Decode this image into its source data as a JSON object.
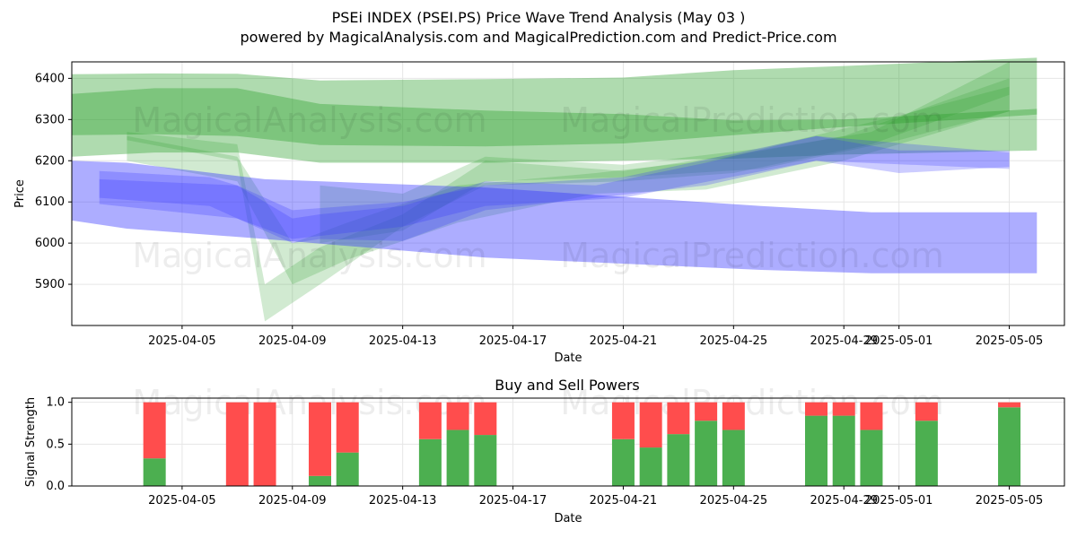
{
  "title": "PSEi INDEX (PSEI.PS) Price Wave Trend Analysis (May 03 )",
  "subtitle": "powered by MagicalAnalysis.com and MagicalPrediction.com and Predict-Price.com",
  "watermarks": [
    "MagicalAnalysis.com",
    "MagicalPrediction.com"
  ],
  "colors": {
    "green_band": "#2ca02c",
    "blue_band": "#3333ff",
    "buy": "#4caf50",
    "sell": "#ff4d4d"
  },
  "chart_data": [
    {
      "type": "area",
      "title": "",
      "xlabel": "Date",
      "ylabel": "Price",
      "xlim": [
        "2025-04-01",
        "2025-05-07"
      ],
      "ylim": [
        5800,
        6440
      ],
      "x_ticks": [
        "2025-04-05",
        "2025-04-09",
        "2025-04-13",
        "2025-04-17",
        "2025-04-21",
        "2025-04-25",
        "2025-04-29",
        "2025-05-01",
        "2025-05-05"
      ],
      "y_ticks": [
        5900,
        6000,
        6100,
        6200,
        6300,
        6400
      ],
      "grid": true,
      "series": [
        {
          "color": "green",
          "x": [
            "2025-04-01",
            "2025-04-04",
            "2025-04-07",
            "2025-04-10",
            "2025-04-16",
            "2025-04-21",
            "2025-04-25",
            "2025-04-29",
            "2025-05-06"
          ],
          "lower": [
            6210,
            6220,
            6220,
            6195,
            6195,
            6200,
            6205,
            6215,
            6225
          ],
          "upper": [
            6410,
            6412,
            6411,
            6395,
            6398,
            6402,
            6420,
            6430,
            6450
          ]
        },
        {
          "color": "green",
          "x": [
            "2025-04-01",
            "2025-04-04",
            "2025-04-07",
            "2025-04-10",
            "2025-04-16",
            "2025-04-21",
            "2025-04-25",
            "2025-04-29",
            "2025-05-06"
          ],
          "lower": [
            6262,
            6264,
            6260,
            6238,
            6235,
            6242,
            6262,
            6282,
            6312
          ],
          "upper": [
            6362,
            6376,
            6376,
            6338,
            6322,
            6313,
            6298,
            6300,
            6326
          ]
        },
        {
          "color": "green",
          "x": [
            "2025-04-03",
            "2025-04-07",
            "2025-04-08",
            "2025-04-10",
            "2025-04-13",
            "2025-04-16",
            "2025-04-21",
            "2025-04-25",
            "2025-04-30",
            "2025-05-05"
          ],
          "lower": [
            6250,
            6200,
            5810,
            5900,
            6040,
            6140,
            6150,
            6170,
            6240,
            6360
          ],
          "upper": [
            6270,
            6240,
            5900,
            5990,
            6070,
            6200,
            6175,
            6215,
            6270,
            6440
          ]
        },
        {
          "color": "green",
          "x": [
            "2025-04-03",
            "2025-04-07",
            "2025-04-09",
            "2025-04-11",
            "2025-04-15",
            "2025-04-20",
            "2025-04-24",
            "2025-04-29",
            "2025-05-05"
          ],
          "lower": [
            6200,
            6150,
            5900,
            5960,
            6050,
            6120,
            6130,
            6200,
            6320
          ],
          "upper": [
            6260,
            6210,
            6000,
            6050,
            6140,
            6170,
            6200,
            6260,
            6400
          ]
        },
        {
          "color": "green",
          "x": [
            "2025-04-10",
            "2025-04-13",
            "2025-04-16",
            "2025-04-21",
            "2025-04-26",
            "2025-05-01",
            "2025-05-05"
          ],
          "lower": [
            6000,
            6030,
            6150,
            6160,
            6180,
            6250,
            6320
          ],
          "upper": [
            6140,
            6120,
            6210,
            6190,
            6230,
            6310,
            6380
          ]
        },
        {
          "color": "blue",
          "x": [
            "2025-04-01",
            "2025-04-03",
            "2025-04-08",
            "2025-04-16",
            "2025-04-26",
            "2025-04-30",
            "2025-05-06"
          ],
          "lower": [
            6055,
            6035,
            6010,
            5965,
            5935,
            5927,
            5927
          ],
          "upper": [
            6200,
            6195,
            6155,
            6135,
            6090,
            6075,
            6075
          ]
        },
        {
          "color": "blue",
          "x": [
            "2025-04-02",
            "2025-04-06",
            "2025-04-07",
            "2025-04-09",
            "2025-04-10",
            "2025-04-13",
            "2025-04-16",
            "2025-04-20",
            "2025-04-24",
            "2025-04-28",
            "2025-05-01",
            "2025-05-05"
          ],
          "lower": [
            6110,
            6090,
            6060,
            6000,
            6010,
            6005,
            6080,
            6110,
            6140,
            6200,
            6170,
            6185
          ],
          "upper": [
            6175,
            6160,
            6140,
            6060,
            6070,
            6090,
            6150,
            6140,
            6195,
            6260,
            6225,
            6225
          ]
        },
        {
          "color": "blue",
          "x": [
            "2025-04-02",
            "2025-04-07",
            "2025-04-09",
            "2025-04-13",
            "2025-04-16",
            "2025-04-21",
            "2025-04-28",
            "2025-05-05"
          ],
          "lower": [
            6095,
            6060,
            6010,
            6040,
            6090,
            6110,
            6200,
            6180
          ],
          "upper": [
            6155,
            6140,
            6080,
            6100,
            6140,
            6160,
            6260,
            6220
          ]
        }
      ]
    },
    {
      "type": "bar",
      "title": "Buy and Sell Powers",
      "xlabel": "Date",
      "ylabel": "Signal Strength",
      "ylim": [
        0,
        1.05
      ],
      "y_ticks": [
        0.0,
        0.5,
        1.0
      ],
      "x_ticks": [
        "2025-04-05",
        "2025-04-09",
        "2025-04-13",
        "2025-04-17",
        "2025-04-21",
        "2025-04-25",
        "2025-04-29",
        "2025-05-01",
        "2025-05-05"
      ],
      "grid": true,
      "categories": [
        "2025-04-04",
        "2025-04-07",
        "2025-04-08",
        "2025-04-10",
        "2025-04-11",
        "2025-04-14",
        "2025-04-15",
        "2025-04-16",
        "2025-04-21",
        "2025-04-22",
        "2025-04-23",
        "2025-04-24",
        "2025-04-25",
        "2025-04-28",
        "2025-04-29",
        "2025-04-30",
        "2025-05-02",
        "2025-05-05"
      ],
      "series": [
        {
          "name": "buy",
          "values": [
            0.33,
            0.0,
            0.0,
            0.12,
            0.4,
            0.56,
            0.67,
            0.61,
            0.56,
            0.46,
            0.62,
            0.78,
            0.67,
            0.84,
            0.84,
            0.67,
            0.78,
            0.94
          ]
        },
        {
          "name": "sell",
          "values": [
            0.67,
            1.0,
            1.0,
            0.88,
            0.6,
            0.44,
            0.33,
            0.39,
            0.44,
            0.54,
            0.38,
            0.22,
            0.33,
            0.16,
            0.16,
            0.33,
            0.22,
            0.06
          ]
        }
      ]
    }
  ]
}
